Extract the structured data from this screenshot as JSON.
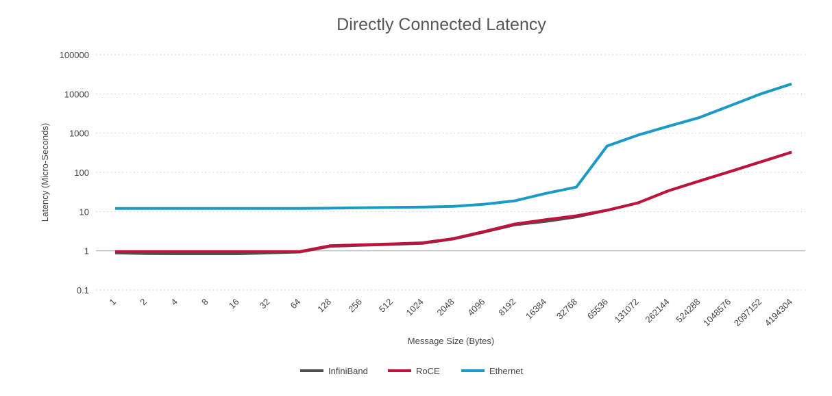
{
  "chart_data": {
    "type": "line",
    "title": "Directly Connected Latency",
    "xlabel": "Message Size (Bytes)",
    "ylabel": "Latency (Micro-Seconds)",
    "yscale": "log",
    "ylim": [
      0.1,
      100000
    ],
    "yticks": [
      "0.1",
      "1",
      "10",
      "100",
      "1000",
      "10000",
      "100000"
    ],
    "grid": true,
    "legend_position": "bottom",
    "categories": [
      "1",
      "2",
      "4",
      "8",
      "16",
      "32",
      "64",
      "128",
      "256",
      "512",
      "1024",
      "2048",
      "4096",
      "8192",
      "16384",
      "32768",
      "65536",
      "131072",
      "262144",
      "524288",
      "1048576",
      "2097152",
      "4194304"
    ],
    "series": [
      {
        "name": "InfiniBand",
        "color": "#4d4f53",
        "values": [
          0.88,
          0.85,
          0.84,
          0.84,
          0.84,
          0.88,
          0.93,
          1.3,
          1.38,
          1.45,
          1.55,
          2.0,
          3.0,
          4.6,
          5.6,
          7.3,
          10.8,
          16.6,
          34,
          60,
          105,
          185,
          327
        ]
      },
      {
        "name": "RoCE",
        "color": "#c0123b",
        "values": [
          0.95,
          0.95,
          0.95,
          0.95,
          0.95,
          0.95,
          0.95,
          1.35,
          1.42,
          1.5,
          1.6,
          2.05,
          3.1,
          4.8,
          6.2,
          7.8,
          10.8,
          16.6,
          34,
          60,
          105,
          185,
          327
        ]
      },
      {
        "name": "Ethernet",
        "color": "#1a9ac4",
        "values": [
          12,
          12,
          12,
          12,
          12,
          12,
          12,
          12.2,
          12.5,
          12.8,
          13,
          13.6,
          15.4,
          18.8,
          29,
          42,
          470,
          890,
          1500,
          2500,
          5000,
          10000,
          18000
        ]
      }
    ]
  }
}
